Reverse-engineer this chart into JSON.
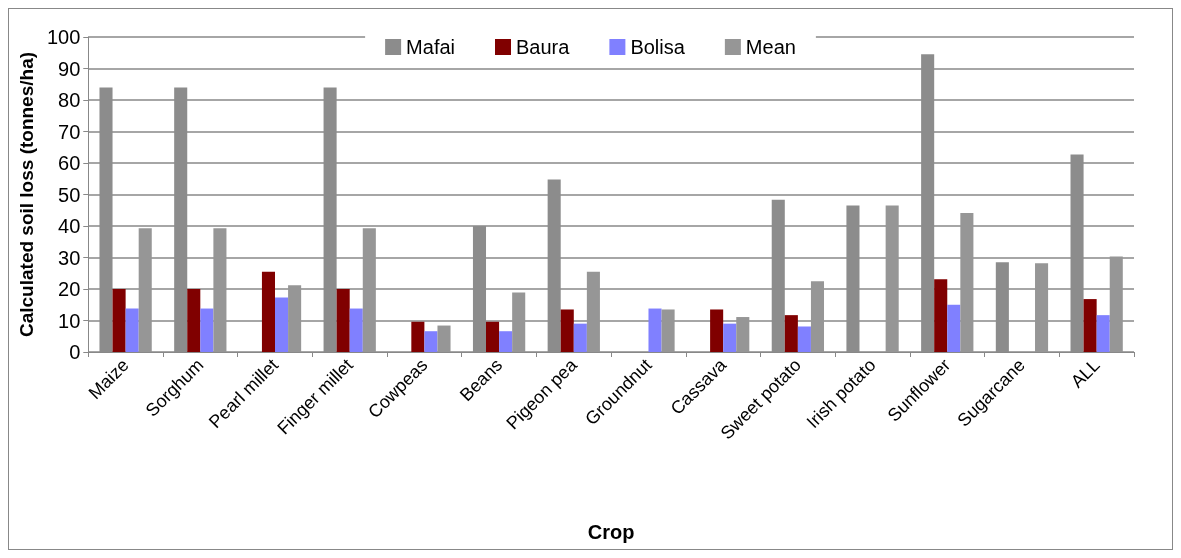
{
  "chart_data": {
    "type": "bar",
    "xlabel": "Crop",
    "ylabel": "Calculated soil loss (tonnes/ha)",
    "categories": [
      "Maize",
      "Sorghum",
      "Pearl millet",
      "Finger millet",
      "Cowpeas",
      "Beans",
      "Pigeon pea",
      "Groundnut",
      "Cassava",
      "Sweet potato",
      "Irish potato",
      "Sunflower",
      "Sugarcane",
      "ALL"
    ],
    "series": [
      {
        "name": "Mafai",
        "color": "#8c8c8c",
        "values": [
          84,
          84,
          null,
          84,
          null,
          40,
          54.8,
          null,
          null,
          48.3,
          46.5,
          94.5,
          28.5,
          62.7
        ]
      },
      {
        "name": "Baura",
        "color": "#800000",
        "values": [
          20,
          20,
          25.5,
          20,
          9.6,
          9.6,
          13.5,
          null,
          13.5,
          11.7,
          null,
          23.1,
          null,
          16.8
        ]
      },
      {
        "name": "Bolisa",
        "color": "#8080ff",
        "values": [
          13.8,
          13.8,
          17.3,
          13.8,
          6.6,
          6.6,
          9,
          13.8,
          9,
          8.1,
          null,
          15,
          null,
          11.7
        ]
      },
      {
        "name": "Mean",
        "color": "#969696",
        "values": [
          39.3,
          39.3,
          21.2,
          39.3,
          8.4,
          18.9,
          25.5,
          13.5,
          11.1,
          22.5,
          46.5,
          44.1,
          28.2,
          30.3
        ]
      }
    ],
    "ylim": [
      0,
      100
    ],
    "yticks": [
      0,
      10,
      20,
      30,
      40,
      50,
      60,
      70,
      80,
      90,
      100
    ],
    "grid": "y",
    "legend": "top"
  }
}
